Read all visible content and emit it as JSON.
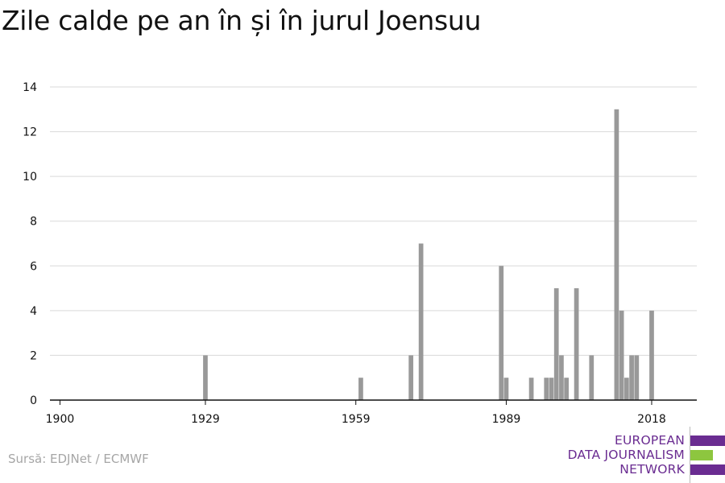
{
  "title": "Zile calde pe an în și în jurul Joensuu",
  "source": "Sursă: EDJNet / ECMWF",
  "logo": {
    "lines": [
      "EUROPEAN",
      "DATA JOURNALISM",
      "NETWORK"
    ],
    "colors": {
      "purple": "#6a2c91",
      "green": "#8dc63f"
    }
  },
  "chart_data": {
    "type": "bar",
    "xlim": [
      1898,
      2027
    ],
    "ylim": [
      0,
      14
    ],
    "yticks": [
      0,
      2,
      4,
      6,
      8,
      10,
      12,
      14
    ],
    "xticks": [
      1900,
      1929,
      1959,
      1989,
      2018
    ],
    "xlabel": "",
    "ylabel": "",
    "grid": true,
    "bar_color": "#999999",
    "x": [
      1929,
      1960,
      1970,
      1972,
      1988,
      1989,
      1994,
      1997,
      1998,
      1999,
      2000,
      2001,
      2003,
      2006,
      2011,
      2012,
      2013,
      2014,
      2015,
      2018
    ],
    "values": [
      2,
      1,
      2,
      7,
      6,
      1,
      1,
      1,
      1,
      5,
      2,
      1,
      5,
      2,
      13,
      4,
      1,
      2,
      2,
      4
    ]
  }
}
